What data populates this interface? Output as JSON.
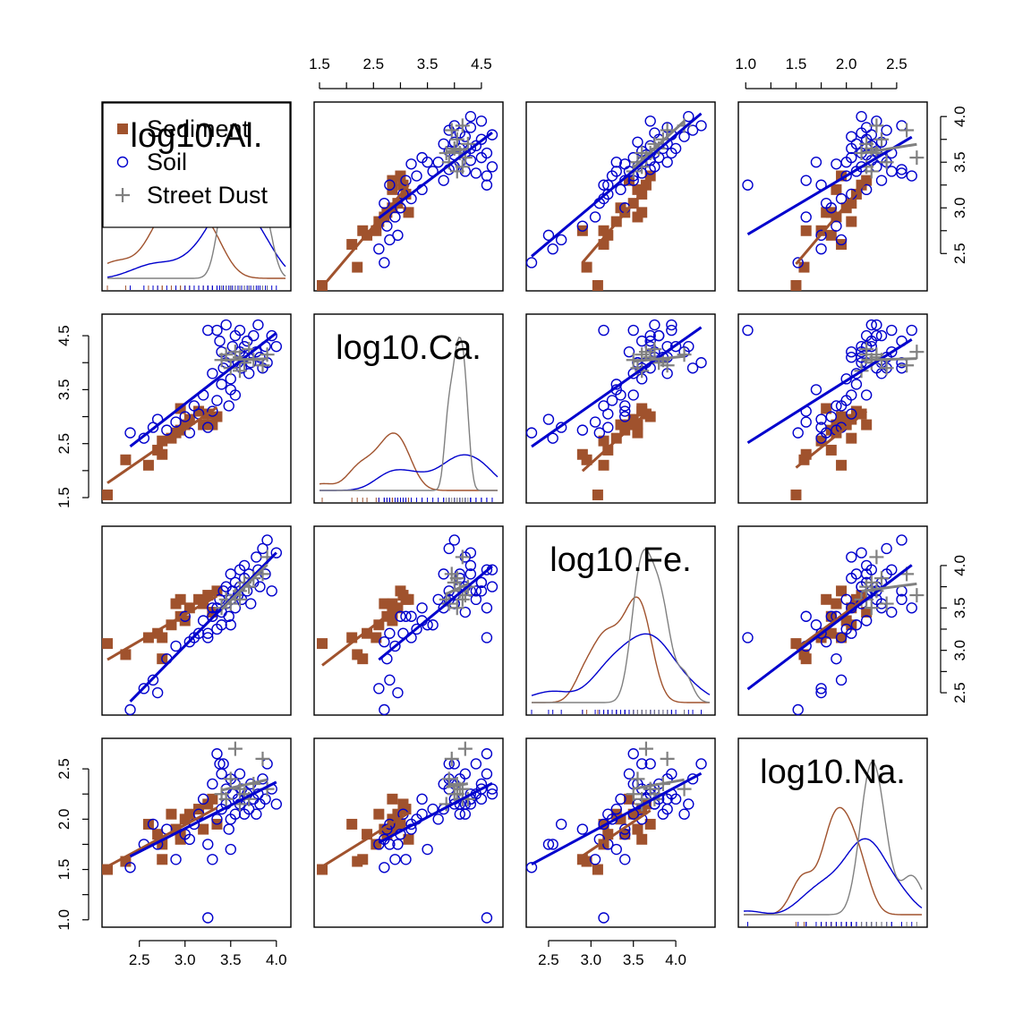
{
  "chart_data": {
    "type": "scatter",
    "title": "",
    "variables": [
      "log10.Al.",
      "log10.Ca.",
      "log10.Fe.",
      "log10.Na."
    ],
    "ranges": {
      "log10.Al.": [
        2.15,
        4.1
      ],
      "log10.Ca.": [
        1.5,
        4.8
      ],
      "log10.Fe.": [
        2.3,
        4.4
      ],
      "log10.Na.": [
        0.98,
        2.75
      ]
    },
    "ticks": {
      "log10.Al.": [
        "2.5",
        "3.0",
        "3.5",
        "4.0"
      ],
      "log10.Ca.": [
        "1.5",
        "2.5",
        "3.5",
        "4.5"
      ],
      "log10.Fe.": [
        "2.5",
        "3.0",
        "3.5",
        "4.0"
      ],
      "log10.Na.": [
        "1.0",
        "1.5",
        "2.0",
        "2.5"
      ]
    },
    "legend": {
      "position": "top-left",
      "entries": [
        {
          "label": "Sediment",
          "symbol": "filled-square",
          "color": "#a0522d"
        },
        {
          "label": "Soil",
          "symbol": "open-circle",
          "color": "#0000cd"
        },
        {
          "label": "Street Dust",
          "symbol": "plus",
          "color": "#808080"
        }
      ]
    },
    "groups": [
      {
        "name": "Sediment",
        "color": "#a0522d",
        "points": [
          [
            2.15,
            1.55,
            3.08,
            1.5
          ],
          [
            2.35,
            2.2,
            2.95,
            1.58
          ],
          [
            2.6,
            2.1,
            3.15,
            1.95
          ],
          [
            2.7,
            2.38,
            3.2,
            1.85
          ],
          [
            2.75,
            2.55,
            3.15,
            1.75
          ],
          [
            2.75,
            2.3,
            2.9,
            1.6
          ],
          [
            2.85,
            2.6,
            3.3,
            2.05
          ],
          [
            2.9,
            2.7,
            3.55,
            1.9
          ],
          [
            2.95,
            2.75,
            3.4,
            1.85
          ],
          [
            3.0,
            2.85,
            3.35,
            2.0
          ],
          [
            3.05,
            2.95,
            3.5,
            2.05
          ],
          [
            3.15,
            3.1,
            3.6,
            2.1
          ],
          [
            3.2,
            2.85,
            3.55,
            1.9
          ],
          [
            3.25,
            3.05,
            3.65,
            2.15
          ],
          [
            3.3,
            2.85,
            3.45,
            2.2
          ],
          [
            3.35,
            3.0,
            3.7,
            1.95
          ],
          [
            2.95,
            3.15,
            3.6,
            1.8
          ]
        ]
      },
      {
        "name": "Soil",
        "color": "#0000cd",
        "points": [
          [
            2.4,
            2.7,
            2.3,
            1.52
          ],
          [
            2.55,
            2.6,
            2.55,
            1.75
          ],
          [
            2.65,
            2.8,
            2.65,
            1.95
          ],
          [
            2.7,
            2.95,
            2.5,
            1.75
          ],
          [
            2.8,
            2.75,
            2.9,
            1.9
          ],
          [
            2.9,
            2.9,
            3.05,
            1.6
          ],
          [
            3.0,
            3.0,
            3.4,
            1.85
          ],
          [
            3.05,
            2.7,
            3.1,
            1.8
          ],
          [
            3.1,
            3.2,
            3.15,
            1.95
          ],
          [
            3.15,
            3.05,
            3.2,
            2.05
          ],
          [
            3.2,
            3.4,
            3.35,
            2.2
          ],
          [
            3.25,
            2.8,
            3.2,
            1.75
          ],
          [
            3.3,
            3.1,
            3.4,
            1.6
          ],
          [
            3.3,
            3.8,
            3.5,
            2.35
          ],
          [
            3.35,
            3.3,
            3.25,
            2.0
          ],
          [
            3.35,
            4.6,
            3.5,
            2.65
          ],
          [
            3.38,
            4.4,
            3.6,
            2.55
          ],
          [
            3.4,
            4.2,
            3.45,
            2.45
          ],
          [
            3.4,
            3.6,
            3.3,
            2.1
          ],
          [
            3.42,
            3.9,
            3.7,
            2.55
          ],
          [
            3.45,
            4.0,
            3.55,
            2.15
          ],
          [
            3.45,
            4.7,
            3.75,
            2.3
          ],
          [
            3.48,
            3.2,
            3.4,
            1.9
          ],
          [
            3.5,
            3.7,
            3.6,
            2.0
          ],
          [
            3.5,
            4.1,
            3.9,
            2.4
          ],
          [
            3.52,
            4.3,
            3.7,
            2.25
          ],
          [
            3.55,
            4.5,
            3.8,
            2.35
          ],
          [
            3.55,
            3.4,
            3.5,
            2.05
          ],
          [
            3.58,
            4.0,
            3.65,
            2.2
          ],
          [
            3.6,
            4.2,
            3.75,
            2.15
          ],
          [
            3.6,
            4.6,
            3.95,
            2.45
          ],
          [
            3.62,
            3.9,
            3.6,
            2.3
          ],
          [
            3.65,
            4.3,
            4.0,
            2.2
          ],
          [
            3.65,
            4.1,
            3.85,
            2.05
          ],
          [
            3.68,
            4.4,
            3.7,
            2.25
          ],
          [
            3.7,
            3.8,
            3.9,
            2.1
          ],
          [
            3.72,
            4.0,
            3.55,
            2.35
          ],
          [
            3.75,
            4.5,
            3.8,
            2.2
          ],
          [
            3.78,
            4.2,
            4.1,
            2.05
          ],
          [
            3.8,
            4.7,
            3.95,
            2.25
          ],
          [
            3.82,
            4.1,
            3.75,
            2.15
          ],
          [
            3.85,
            3.9,
            4.2,
            2.4
          ],
          [
            3.88,
            4.3,
            3.9,
            2.2
          ],
          [
            3.9,
            4.0,
            4.3,
            2.55
          ],
          [
            3.95,
            4.5,
            3.7,
            2.3
          ],
          [
            4.0,
            4.3,
            4.15,
            2.15
          ],
          [
            3.25,
            4.6,
            3.15,
            1.02
          ],
          [
            3.5,
            3.5,
            3.3,
            1.7
          ]
        ]
      },
      {
        "name": "Street Dust",
        "color": "#808080",
        "points": [
          [
            3.4,
            4.05,
            3.5,
            2.25
          ],
          [
            3.45,
            4.15,
            3.6,
            2.2
          ],
          [
            3.5,
            3.9,
            3.55,
            2.4
          ],
          [
            3.55,
            4.2,
            3.65,
            2.7
          ],
          [
            3.6,
            4.1,
            3.7,
            2.3
          ],
          [
            3.65,
            4.0,
            3.8,
            2.25
          ],
          [
            3.7,
            4.25,
            3.75,
            2.2
          ],
          [
            3.75,
            4.05,
            3.85,
            2.35
          ],
          [
            3.85,
            3.95,
            3.9,
            2.6
          ],
          [
            3.9,
            4.15,
            4.1,
            2.3
          ],
          [
            3.6,
            3.85,
            3.6,
            2.15
          ]
        ]
      }
    ]
  }
}
